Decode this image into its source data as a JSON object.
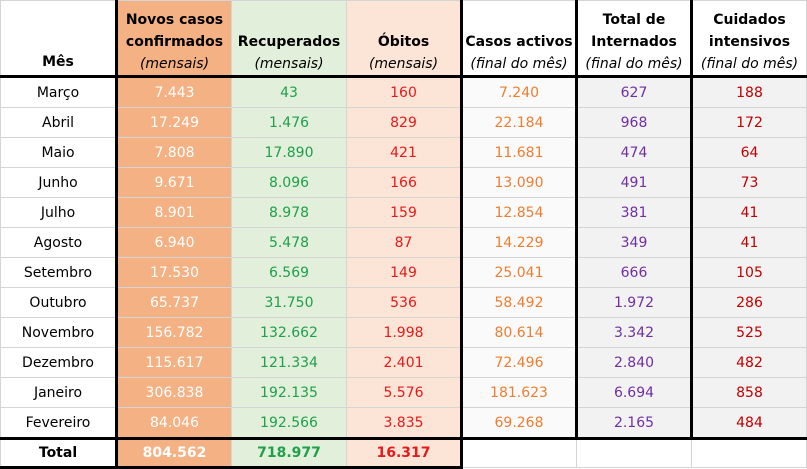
{
  "headers": [
    {
      "title": "Mês",
      "sub": ""
    },
    {
      "title": "Novos casos confirmados",
      "sub": "(mensais)"
    },
    {
      "title": "Recuperados",
      "sub": "(mensais)"
    },
    {
      "title": "Óbitos",
      "sub": "(mensais)"
    },
    {
      "title": "Casos activos",
      "sub": "(final do mês)"
    },
    {
      "title": "Total de Internados",
      "sub": "(final do mês)"
    },
    {
      "title": "Cuidados intensivos",
      "sub": "(final do mês)"
    }
  ],
  "rows": [
    [
      "Março",
      "7.443",
      "43",
      "160",
      "7.240",
      "627",
      "188"
    ],
    [
      "Abril",
      "17.249",
      "1.476",
      "829",
      "22.184",
      "968",
      "172"
    ],
    [
      "Maio",
      "7.808",
      "17.890",
      "421",
      "11.681",
      "474",
      "64"
    ],
    [
      "Junho",
      "9.671",
      "8.096",
      "166",
      "13.090",
      "491",
      "73"
    ],
    [
      "Julho",
      "8.901",
      "8.978",
      "159",
      "12.854",
      "381",
      "41"
    ],
    [
      "Agosto",
      "6.940",
      "5.478",
      "87",
      "14.229",
      "349",
      "41"
    ],
    [
      "Setembro",
      "17.530",
      "6.569",
      "149",
      "25.041",
      "666",
      "105"
    ],
    [
      "Outubro",
      "65.737",
      "31.750",
      "536",
      "58.492",
      "1.972",
      "286"
    ],
    [
      "Novembro",
      "156.782",
      "132.662",
      "1.998",
      "80.614",
      "3.342",
      "525"
    ],
    [
      "Dezembro",
      "115.617",
      "121.334",
      "2.401",
      "72.496",
      "2.840",
      "482"
    ],
    [
      "Janeiro",
      "306.838",
      "192.135",
      "5.576",
      "181.623",
      "6.694",
      "858"
    ],
    [
      "Fevereiro",
      "84.046",
      "192.566",
      "3.835",
      "69.268",
      "2.165",
      "484"
    ]
  ],
  "total": {
    "label": "Total",
    "novos": "804.562",
    "recuperados": "718.977",
    "obitos": "16.317"
  }
}
